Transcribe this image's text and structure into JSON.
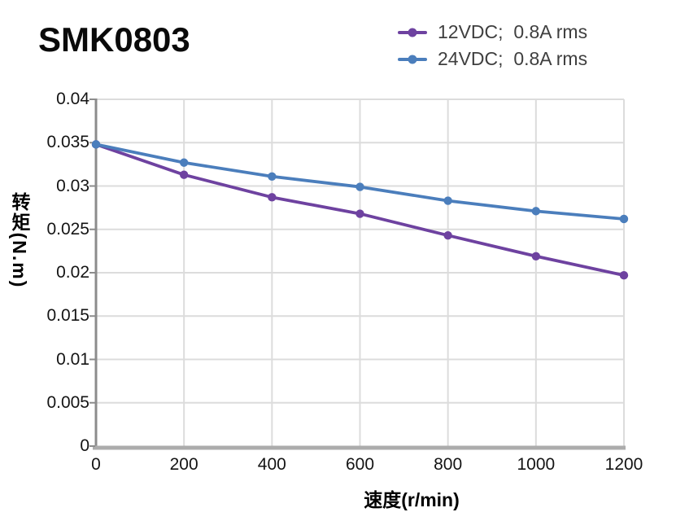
{
  "chart_data": {
    "type": "line",
    "title": "SMK0803",
    "x": [
      0,
      200,
      400,
      600,
      800,
      1000,
      1200
    ],
    "series": [
      {
        "name": "12VDC;  0.8A rms",
        "color": "#6E42A0",
        "values": [
          0.0348,
          0.0313,
          0.0287,
          0.0268,
          0.0243,
          0.0219,
          0.0197
        ]
      },
      {
        "name": "24VDC;  0.8A rms",
        "color": "#4B7EBC",
        "values": [
          0.0348,
          0.0327,
          0.0311,
          0.0299,
          0.0283,
          0.0271,
          0.0262
        ]
      }
    ],
    "xlabel": "速度(r/min)",
    "ylabel": "转矩(N.m)",
    "xlim": [
      0,
      1200
    ],
    "ylim": [
      0,
      0.04
    ],
    "x_ticks": [
      0,
      200,
      400,
      600,
      800,
      1000,
      1200
    ],
    "x_tick_labels": [
      "0",
      "200",
      "400",
      "600",
      "800",
      "1000",
      "1200"
    ],
    "y_ticks": [
      0,
      0.005,
      0.01,
      0.015,
      0.02,
      0.025,
      0.03,
      0.035,
      0.04
    ],
    "y_tick_labels": [
      "0",
      "0.005",
      "0.01",
      "0.015",
      "0.02",
      "0.025",
      "0.03",
      "0.035",
      "0.04"
    ],
    "grid": true,
    "legend_position": "top-right",
    "marker": "circle",
    "colors": {
      "gridline": "#DCDCDC",
      "y_axis": "#8C8C8C",
      "x_axis": "#ACACAC",
      "tick_label": "#141414",
      "legend_text": "#3F3F3F",
      "title": "#0A0A0A"
    }
  }
}
